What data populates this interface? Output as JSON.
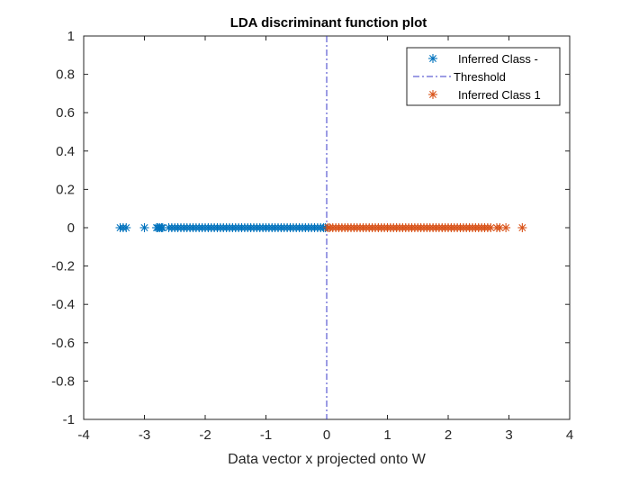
{
  "chart_data": {
    "type": "scatter",
    "title": "LDA discriminant function plot",
    "xlabel": "Data vector x projected onto W",
    "ylabel": "",
    "xlim": [
      -4,
      4
    ],
    "ylim": [
      -1,
      1
    ],
    "xticks": [
      "-4",
      "-3",
      "-2",
      "-1",
      "0",
      "1",
      "2",
      "3",
      "4"
    ],
    "yticks": [
      "-1",
      "-0.8",
      "-0.6",
      "-0.4",
      "-0.2",
      "0",
      "0.2",
      "0.4",
      "0.6",
      "0.8",
      "1"
    ],
    "grid": false,
    "legend_position": "top-right",
    "threshold": {
      "name": "Threshold",
      "x": 0,
      "color": "#3a3ac8",
      "style": "dash-dot"
    },
    "series": [
      {
        "name": "Inferred Class -",
        "marker": "asterisk",
        "color": "#0072BD",
        "y": 0,
        "x": [
          -3.4,
          -3.35,
          -3.3,
          -3.0,
          -2.8,
          -2.78,
          -2.75,
          -2.72,
          -2.7,
          -2.6,
          -2.55,
          -2.5,
          -2.45,
          -2.4,
          -2.35,
          -2.3,
          -2.25,
          -2.2,
          -2.15,
          -2.1,
          -2.05,
          -2.0,
          -1.95,
          -1.9,
          -1.85,
          -1.8,
          -1.75,
          -1.7,
          -1.65,
          -1.6,
          -1.55,
          -1.5,
          -1.45,
          -1.4,
          -1.35,
          -1.3,
          -1.25,
          -1.2,
          -1.15,
          -1.1,
          -1.05,
          -1.0,
          -0.95,
          -0.9,
          -0.85,
          -0.8,
          -0.75,
          -0.7,
          -0.65,
          -0.6,
          -0.55,
          -0.5,
          -0.45,
          -0.4,
          -0.35,
          -0.3,
          -0.25,
          -0.2,
          -0.15,
          -0.1,
          -0.05,
          -0.02
        ]
      },
      {
        "name": "Inferred Class 1",
        "marker": "asterisk",
        "color": "#D95319",
        "y": 0,
        "x": [
          0.02,
          0.05,
          0.1,
          0.15,
          0.2,
          0.25,
          0.3,
          0.35,
          0.4,
          0.45,
          0.5,
          0.55,
          0.6,
          0.65,
          0.7,
          0.75,
          0.8,
          0.85,
          0.9,
          0.95,
          1.0,
          1.05,
          1.1,
          1.15,
          1.2,
          1.25,
          1.3,
          1.35,
          1.4,
          1.45,
          1.5,
          1.55,
          1.6,
          1.65,
          1.7,
          1.75,
          1.8,
          1.85,
          1.9,
          1.95,
          2.0,
          2.05,
          2.1,
          2.15,
          2.2,
          2.25,
          2.3,
          2.35,
          2.4,
          2.45,
          2.5,
          2.55,
          2.6,
          2.65,
          2.7,
          2.8,
          2.85,
          2.95,
          3.22
        ]
      }
    ],
    "legend": [
      {
        "label": "Inferred Class -",
        "kind": "marker",
        "color": "#0072BD"
      },
      {
        "label": "Threshold",
        "kind": "line",
        "color": "#3a3ac8"
      },
      {
        "label": "Inferred Class 1",
        "kind": "marker",
        "color": "#D95319"
      }
    ]
  }
}
